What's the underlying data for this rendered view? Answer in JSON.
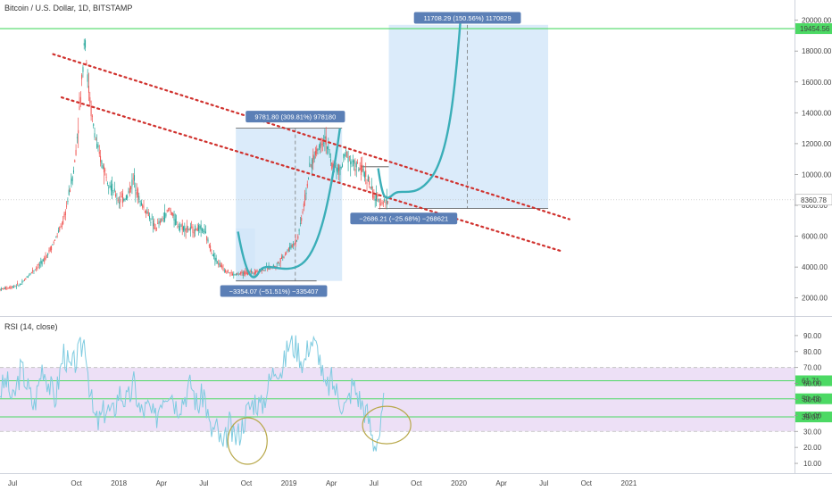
{
  "header": {
    "title": "Bitcoin / U.S. Dollar, 1D, BITSTAMP"
  },
  "colors": {
    "candle_up": "#26a69a",
    "candle_down": "#ef5350",
    "curve": "#3aaeb8",
    "trend": "#d0312d",
    "hline": "#4cd964",
    "range_fill": "#cfe4f8",
    "rsi_fill": "#ede0f6",
    "rsi_line": "#7ecbe0",
    "label_bg": "#5b7fb6",
    "circle": "#b8a84a"
  },
  "price_label": "8360.78",
  "top_hline_label": "19454.56",
  "chart_data": [
    {
      "type": "line",
      "title": "Bitcoin / U.S. Dollar, 1D, BITSTAMP",
      "xlabel": "",
      "ylabel": "",
      "x_ticks": [
        "Jul",
        "Oct",
        "2018",
        "Apr",
        "Jul",
        "Oct",
        "2019",
        "Apr",
        "Jul",
        "Oct",
        "2020",
        "Apr",
        "Jul",
        "Oct",
        "2021"
      ],
      "y_ticks": [
        "20000.00",
        "18000.00",
        "16000.00",
        "14000.00",
        "12000.00",
        "10000.00",
        "8000.00",
        "6000.00",
        "4000.00",
        "2000.00"
      ],
      "ylim": [
        0,
        20500
      ],
      "series": [
        {
          "values": [
            [
              0,
              2550
            ],
            [
              0.5,
              2700
            ],
            [
              1,
              2900
            ],
            [
              1.5,
              3700
            ],
            [
              2,
              4300
            ],
            [
              2.5,
              5500
            ],
            [
              3,
              7000
            ],
            [
              3.5,
              10500
            ],
            [
              3.8,
              15000
            ],
            [
              4,
              19400
            ],
            [
              4.1,
              16500
            ],
            [
              4.3,
              14000
            ],
            [
              4.6,
              11500
            ],
            [
              5,
              10000
            ],
            [
              5.3,
              9000
            ],
            [
              5.6,
              8300
            ],
            [
              6,
              8600
            ],
            [
              6.3,
              9800
            ],
            [
              6.6,
              8200
            ],
            [
              7,
              7400
            ],
            [
              7.3,
              6500
            ],
            [
              7.6,
              7000
            ],
            [
              8,
              7800
            ],
            [
              8.3,
              6800
            ],
            [
              8.6,
              6600
            ],
            [
              9,
              6400
            ],
            [
              9.3,
              6500
            ],
            [
              9.6,
              6400
            ],
            [
              9.8,
              5600
            ],
            [
              10,
              4900
            ],
            [
              10.3,
              4200
            ],
            [
              10.6,
              3800
            ],
            [
              11,
              3500
            ],
            [
              11.5,
              3600
            ],
            [
              12,
              3700
            ],
            [
              12.5,
              3900
            ],
            [
              13,
              4100
            ],
            [
              13.5,
              5000
            ],
            [
              14,
              5800
            ],
            [
              14.3,
              8000
            ],
            [
              14.6,
              10500
            ],
            [
              15,
              11800
            ],
            [
              15.3,
              12500
            ],
            [
              15.6,
              10600
            ],
            [
              16,
              10200
            ],
            [
              16.3,
              11500
            ],
            [
              16.6,
              10700
            ],
            [
              17,
              10300
            ],
            [
              17.3,
              9800
            ],
            [
              17.6,
              8500
            ],
            [
              18,
              8200
            ],
            [
              18.3,
              8360
            ]
          ]
        }
      ],
      "annotations": [
        {
          "text": "9781.80 (309.81%) 978180"
        },
        {
          "text": "−3354.07 (−51.51%) −335407"
        },
        {
          "text": "−2686.21 (−25.68%) −268621"
        },
        {
          "text": "11708.29 (150.56%) 1170829"
        }
      ]
    },
    {
      "type": "line",
      "title": "RSI (14, close)",
      "y_ticks": [
        "90.00",
        "80.00",
        "70.00",
        "60.00",
        "50.00",
        "40.00",
        "30.00",
        "20.00",
        "10.00"
      ],
      "ylim": [
        5,
        100
      ],
      "band": [
        30,
        70
      ],
      "lines": [
        {
          "value": 61.71,
          "label": "61.71"
        },
        {
          "value": 50.43,
          "label": "50.43"
        },
        {
          "value": 39.07,
          "label": "39.07"
        }
      ],
      "series": [
        {
          "values": [
            [
              0,
              55
            ],
            [
              0.3,
              62
            ],
            [
              0.6,
              48
            ],
            [
              1,
              70
            ],
            [
              1.3,
              58
            ],
            [
              1.6,
              45
            ],
            [
              2,
              72
            ],
            [
              2.3,
              60
            ],
            [
              2.6,
              50
            ],
            [
              3,
              80
            ],
            [
              3.3,
              68
            ],
            [
              3.6,
              75
            ],
            [
              4,
              88
            ],
            [
              4.2,
              60
            ],
            [
              4.4,
              40
            ],
            [
              4.6,
              35
            ],
            [
              5,
              45
            ],
            [
              5.3,
              40
            ],
            [
              5.6,
              55
            ],
            [
              6,
              48
            ],
            [
              6.3,
              60
            ],
            [
              6.6,
              42
            ],
            [
              7,
              45
            ],
            [
              7.3,
              36
            ],
            [
              7.6,
              52
            ],
            [
              8,
              58
            ],
            [
              8.3,
              46
            ],
            [
              8.6,
              50
            ],
            [
              9,
              60
            ],
            [
              9.3,
              45
            ],
            [
              9.6,
              55
            ],
            [
              9.9,
              30
            ],
            [
              10.2,
              32
            ],
            [
              10.5,
              18
            ],
            [
              10.8,
              35
            ],
            [
              11,
              25
            ],
            [
              11.3,
              30
            ],
            [
              11.6,
              42
            ],
            [
              12,
              50
            ],
            [
              12.3,
              45
            ],
            [
              12.6,
              58
            ],
            [
              13,
              72
            ],
            [
              13.3,
              68
            ],
            [
              13.6,
              86
            ],
            [
              14,
              82
            ],
            [
              14.3,
              72
            ],
            [
              14.6,
              88
            ],
            [
              15,
              80
            ],
            [
              15.3,
              55
            ],
            [
              15.6,
              62
            ],
            [
              16,
              50
            ],
            [
              16.3,
              45
            ],
            [
              16.6,
              60
            ],
            [
              17,
              48
            ],
            [
              17.3,
              40
            ],
            [
              17.6,
              22
            ],
            [
              17.9,
              30
            ],
            [
              18.1,
              52
            ]
          ]
        }
      ]
    }
  ]
}
